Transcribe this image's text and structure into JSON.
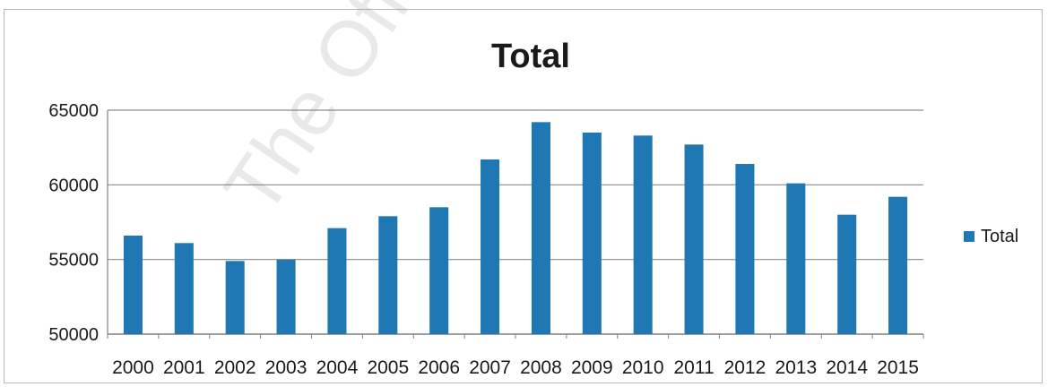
{
  "watermark_text": "The Official In",
  "chart_data": {
    "type": "bar",
    "title": "Total",
    "xlabel": "",
    "ylabel": "",
    "categories": [
      "2000",
      "2001",
      "2002",
      "2003",
      "2004",
      "2005",
      "2006",
      "2007",
      "2008",
      "2009",
      "2010",
      "2011",
      "2012",
      "2013",
      "2014",
      "2015"
    ],
    "series": [
      {
        "name": "Total",
        "color": "#1f77b4",
        "values": [
          56600,
          56100,
          54900,
          55000,
          57100,
          57900,
          58500,
          61700,
          64200,
          63500,
          63300,
          62700,
          61400,
          60100,
          58000,
          59200
        ]
      }
    ],
    "ylim": [
      50000,
      65000
    ],
    "yticks": [
      50000,
      55000,
      60000,
      65000
    ],
    "grid": true,
    "legend_position": "right"
  }
}
